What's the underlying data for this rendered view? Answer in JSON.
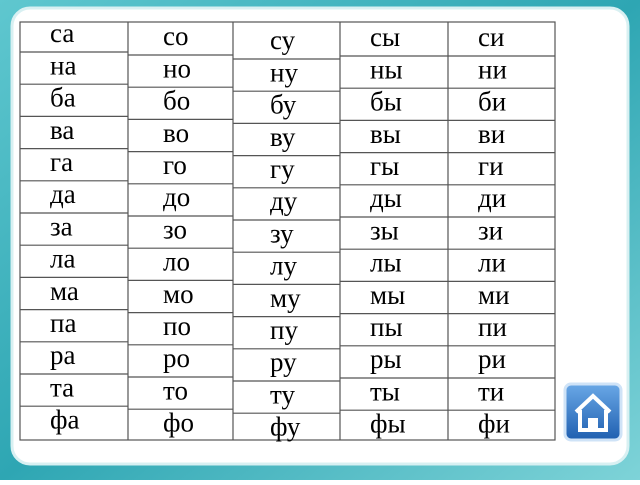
{
  "columns": [
    [
      "са",
      "на",
      "ба",
      "ва",
      "га",
      "да",
      "за",
      "ла",
      "ма",
      "па",
      "ра",
      "та",
      "фа"
    ],
    [
      "со",
      "но",
      "бо",
      "во",
      "го",
      "до",
      "зо",
      "ло",
      "мо",
      "по",
      "ро",
      "то",
      "фо"
    ],
    [
      "су",
      "ну",
      "бу",
      "ву",
      "гу",
      "ду",
      "зу",
      "лу",
      "му",
      "пу",
      "ру",
      "ту",
      "фу"
    ],
    [
      "сы",
      "ны",
      "бы",
      "вы",
      "гы",
      "ды",
      "зы",
      "лы",
      "мы",
      "пы",
      "ры",
      "ты",
      "фы"
    ],
    [
      "си",
      "ни",
      "би",
      "ви",
      "ги",
      "ди",
      "зи",
      "ли",
      "ми",
      "пи",
      "ри",
      "ти",
      "фи"
    ]
  ]
}
